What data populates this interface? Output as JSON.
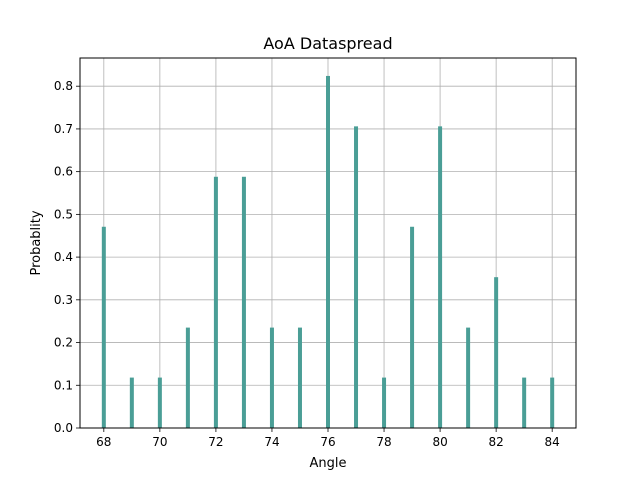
{
  "chart_data": {
    "type": "bar",
    "title": "AoA Dataspread",
    "xlabel": "Angle",
    "ylabel": "Probablity",
    "xlim": [
      67.15,
      84.85
    ],
    "ylim": [
      0,
      0.866
    ],
    "x_ticks": [
      68,
      70,
      72,
      74,
      76,
      78,
      80,
      82,
      84
    ],
    "y_ticks": [
      0.0,
      0.1,
      0.2,
      0.3,
      0.4,
      0.5,
      0.6,
      0.7,
      0.8
    ],
    "grid": true,
    "bar_color": "#4a9e96",
    "x": [
      68,
      69,
      70,
      71,
      72,
      73,
      74,
      75,
      76,
      77,
      78,
      79,
      80,
      81,
      82,
      83,
      84
    ],
    "values": [
      0.471,
      0.118,
      0.118,
      0.235,
      0.588,
      0.588,
      0.235,
      0.235,
      0.824,
      0.706,
      0.118,
      0.471,
      0.706,
      0.235,
      0.353,
      0.118,
      0.118
    ]
  }
}
